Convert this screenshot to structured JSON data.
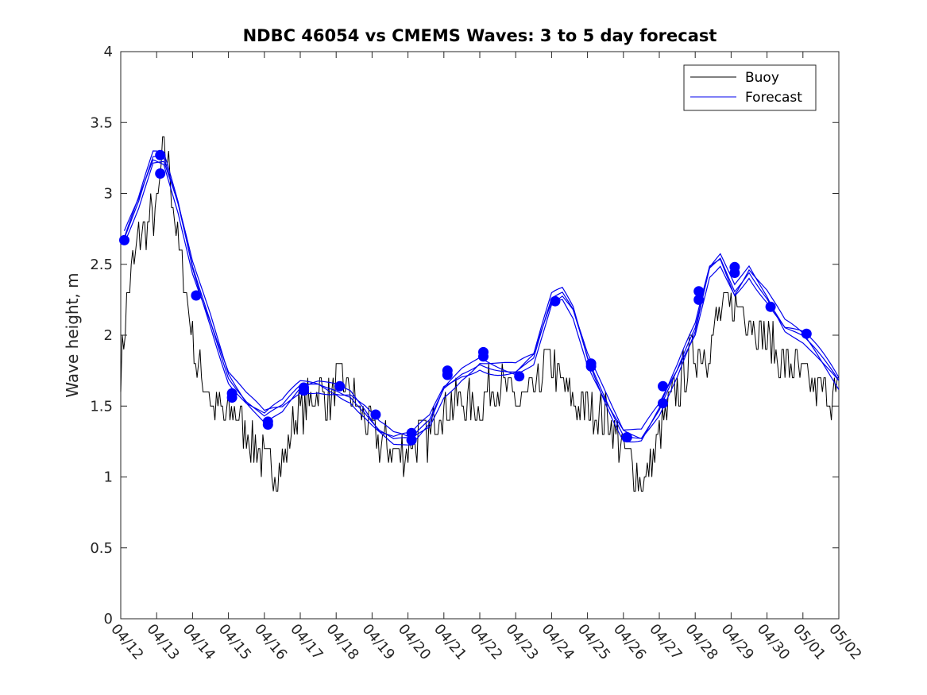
{
  "chart_data": {
    "type": "line",
    "title": "NDBC 46054 vs CMEMS Waves: 3 to 5 day forecast",
    "xlabel": "",
    "ylabel": "Wave height, m",
    "x_tick_labels": [
      "04/12",
      "04/13",
      "04/14",
      "04/15",
      "04/16",
      "04/17",
      "04/18",
      "04/19",
      "04/20",
      "04/21",
      "04/22",
      "04/23",
      "04/24",
      "04/25",
      "04/26",
      "04/27",
      "04/28",
      "04/29",
      "04/30",
      "05/01",
      "05/02"
    ],
    "y_ticks": [
      0,
      0.5,
      1,
      1.5,
      2,
      2.5,
      3,
      3.5,
      4
    ],
    "y_tick_labels": [
      "0",
      "0.5",
      "1",
      "1.5",
      "2",
      "2.5",
      "3",
      "3.5",
      "4"
    ],
    "xlim_days": [
      0,
      20
    ],
    "ylim": [
      0,
      4
    ],
    "grid": false,
    "legend": {
      "placement": "top-right",
      "entries": [
        {
          "label": "Buoy",
          "color": "#000000"
        },
        {
          "label": "Forecast",
          "color": "#0000ee"
        }
      ]
    },
    "buoy_anchor_days": [
      0,
      0.2,
      0.5,
      0.8,
      1.0,
      1.2,
      1.4,
      1.6,
      1.9,
      2.1,
      2.3,
      2.6,
      2.9,
      3.2,
      3.5,
      3.8,
      4.0,
      4.3,
      4.6,
      4.9,
      5.2,
      5.5,
      5.8,
      6.1,
      6.4,
      6.8,
      7.1,
      7.4,
      7.7,
      8.0,
      8.3,
      8.6,
      8.9,
      9.2,
      9.5,
      9.8,
      10.1,
      10.4,
      10.7,
      11.0,
      11.3,
      11.6,
      11.8,
      12.0,
      12.2,
      12.5,
      12.8,
      13.1,
      13.4,
      13.7,
      14.0,
      14.3,
      14.6,
      14.9,
      15.2,
      15.5,
      15.8,
      16.0,
      16.3,
      16.6,
      16.9,
      17.1,
      17.3,
      17.6,
      17.9,
      18.2,
      18.5,
      18.8,
      19.1,
      19.4,
      19.7,
      20.0
    ],
    "buoy_anchor_heights": [
      1.8,
      2.3,
      2.7,
      2.8,
      2.9,
      3.3,
      3.1,
      2.6,
      2.2,
      1.8,
      1.7,
      1.5,
      1.4,
      1.5,
      1.3,
      1.2,
      1.1,
      1.05,
      1.15,
      1.45,
      1.5,
      1.6,
      1.55,
      1.7,
      1.6,
      1.4,
      1.3,
      1.2,
      1.15,
      1.2,
      1.3,
      1.3,
      1.5,
      1.5,
      1.55,
      1.5,
      1.5,
      1.7,
      1.6,
      1.55,
      1.55,
      1.6,
      1.8,
      1.8,
      1.7,
      1.6,
      1.5,
      1.5,
      1.45,
      1.35,
      1.2,
      1.05,
      0.95,
      1.2,
      1.45,
      1.6,
      1.8,
      1.9,
      1.85,
      2.1,
      2.2,
      2.2,
      2.2,
      2.1,
      2.0,
      1.9,
      1.8,
      1.75,
      1.7,
      1.6,
      1.6,
      1.6
    ],
    "forecast_anchor_days": [
      0.1,
      0.5,
      0.9,
      1.2,
      1.6,
      2.0,
      2.5,
      3.0,
      3.5,
      4.0,
      4.5,
      5.0,
      5.5,
      6.0,
      6.4,
      6.8,
      7.2,
      7.6,
      8.1,
      8.6,
      9.0,
      9.5,
      10.0,
      10.5,
      11.0,
      11.5,
      12.0,
      12.3,
      12.6,
      13.0,
      13.5,
      14.0,
      14.5,
      15.0,
      15.5,
      16.0,
      16.4,
      16.7,
      17.1,
      17.5,
      18.0,
      18.5,
      19.0,
      19.5,
      20.0
    ],
    "forecast_anchor_heights": [
      2.67,
      2.9,
      3.2,
      3.2,
      2.9,
      2.5,
      2.15,
      1.75,
      1.55,
      1.4,
      1.45,
      1.6,
      1.65,
      1.65,
      1.62,
      1.5,
      1.35,
      1.25,
      1.22,
      1.35,
      1.6,
      1.75,
      1.85,
      1.8,
      1.75,
      1.8,
      2.2,
      2.25,
      2.15,
      1.85,
      1.6,
      1.35,
      1.3,
      1.45,
      1.7,
      2.0,
      2.45,
      2.55,
      2.35,
      2.5,
      2.3,
      2.05,
      1.95,
      1.8,
      1.65
    ],
    "forecast_member_offsets": [
      0.06,
      -0.03,
      -0.07,
      0.1
    ],
    "markers": [
      {
        "day": 0.1,
        "value": 2.67
      },
      {
        "day": 1.1,
        "value": 3.27
      },
      {
        "day": 1.1,
        "value": 3.14
      },
      {
        "day": 2.1,
        "value": 2.28
      },
      {
        "day": 3.1,
        "value": 1.59
      },
      {
        "day": 3.1,
        "value": 1.56
      },
      {
        "day": 4.1,
        "value": 1.39
      },
      {
        "day": 4.1,
        "value": 1.37
      },
      {
        "day": 5.1,
        "value": 1.63
      },
      {
        "day": 5.1,
        "value": 1.61
      },
      {
        "day": 6.1,
        "value": 1.64
      },
      {
        "day": 7.1,
        "value": 1.44
      },
      {
        "day": 8.1,
        "value": 1.31
      },
      {
        "day": 8.1,
        "value": 1.26
      },
      {
        "day": 9.1,
        "value": 1.75
      },
      {
        "day": 9.1,
        "value": 1.72
      },
      {
        "day": 10.1,
        "value": 1.88
      },
      {
        "day": 10.1,
        "value": 1.85
      },
      {
        "day": 11.1,
        "value": 1.71
      },
      {
        "day": 12.1,
        "value": 2.24
      },
      {
        "day": 13.1,
        "value": 1.8
      },
      {
        "day": 13.1,
        "value": 1.78
      },
      {
        "day": 14.1,
        "value": 1.28
      },
      {
        "day": 15.1,
        "value": 1.64
      },
      {
        "day": 15.1,
        "value": 1.52
      },
      {
        "day": 16.1,
        "value": 2.31
      },
      {
        "day": 16.1,
        "value": 2.25
      },
      {
        "day": 17.1,
        "value": 2.48
      },
      {
        "day": 17.1,
        "value": 2.44
      },
      {
        "day": 18.1,
        "value": 2.2
      },
      {
        "day": 19.1,
        "value": 2.01
      }
    ],
    "colors": {
      "buoy": "#000000",
      "forecast": "#0000ee",
      "marker": "#0000ff"
    }
  }
}
